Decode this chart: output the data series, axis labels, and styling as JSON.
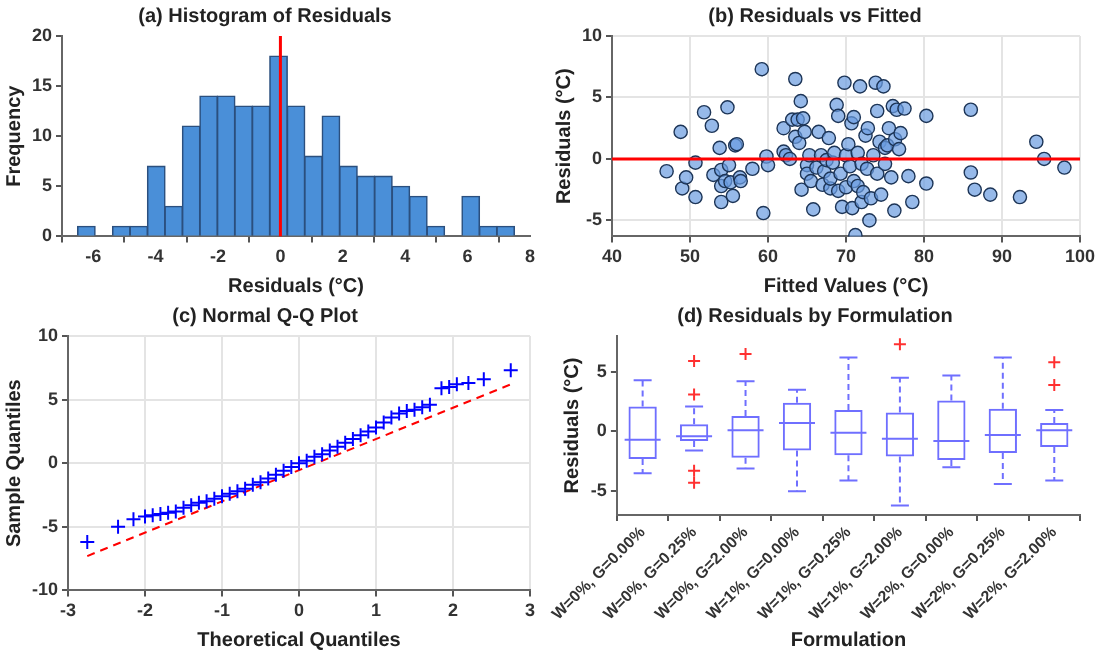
{
  "chart_data": [
    {
      "type": "histogram",
      "title": "(a) Histogram of Residuals",
      "xlabel": "Residuals (°C)",
      "ylabel": "Frequency",
      "color": "#4a8fd8",
      "bins": [
        -6.5,
        -5.94,
        -5.38,
        -4.82,
        -4.26,
        -3.7,
        -3.14,
        -2.58,
        -2.02,
        -1.46,
        -0.9,
        -0.34,
        0.22,
        0.78,
        1.34,
        1.9,
        2.46,
        3.02,
        3.58,
        4.14,
        4.7,
        5.26,
        5.82,
        6.38,
        6.94,
        7.5
      ],
      "values": [
        1,
        0,
        1,
        1,
        7,
        3,
        11,
        14,
        14,
        13,
        13,
        18,
        13,
        8,
        12,
        7,
        6,
        6,
        5,
        4,
        1,
        0,
        4,
        1,
        1
      ],
      "xlim": [
        -7,
        8
      ],
      "xticks": [
        -6,
        -4,
        -2,
        0,
        2,
        4,
        6,
        8
      ],
      "ylim": [
        0,
        20
      ],
      "yticks": [
        0,
        5,
        10,
        15,
        20
      ],
      "grid": false,
      "legend": false,
      "ref_lines": [
        {
          "axis": "x",
          "value": 0,
          "color": "#ff0000"
        }
      ]
    },
    {
      "type": "scatter",
      "title": "(b) Residuals vs Fitted",
      "xlabel": "Fitted Values (°C)",
      "ylabel": "Residuals (°C)",
      "color": "#6a9be0",
      "marker": "circle",
      "x": [
        47,
        48.8,
        49,
        49.5,
        50.7,
        50.7,
        51.8,
        52.8,
        53,
        53.8,
        54,
        54,
        54,
        54.5,
        54.8,
        55,
        55.2,
        55.5,
        55.8,
        56,
        56.4,
        56.5,
        58,
        59.2,
        59.4,
        59.8,
        60,
        62,
        62,
        62.3,
        62.8,
        63.1,
        63.5,
        63.5,
        63.8,
        64,
        64.2,
        64.3,
        64.5,
        64.7,
        65,
        65,
        65.3,
        65.5,
        65.8,
        66.2,
        66.5,
        66.8,
        67,
        67.2,
        67.5,
        67.8,
        68,
        68,
        68.3,
        68.5,
        68.8,
        69,
        69,
        69.3,
        69.5,
        69.8,
        70,
        70,
        70.3,
        70.5,
        70.7,
        70.8,
        71,
        71,
        71.2,
        71.5,
        71.5,
        71.8,
        72,
        72,
        72.2,
        72.5,
        72.7,
        72.8,
        73,
        73.2,
        73.5,
        73.8,
        74,
        74,
        74.3,
        74.5,
        74.8,
        75,
        75,
        75.3,
        75.5,
        75.8,
        76,
        76.2,
        76.3,
        76.5,
        76.8,
        77,
        77.5,
        78,
        78.5,
        80.3,
        80.3,
        86,
        86,
        86.5,
        88.5,
        92.3,
        94.4,
        95.4,
        98
      ],
      "values": [
        -1,
        2.2,
        -2.4,
        -1.5,
        -0.3,
        -3.1,
        3.8,
        2.7,
        -1.3,
        0.9,
        -0.9,
        -2.2,
        -3.5,
        -1.8,
        4.2,
        -0.5,
        -1.9,
        -3,
        1.1,
        1.2,
        -1.5,
        -1.8,
        -0.8,
        7.3,
        -4.4,
        0.2,
        -0.5,
        2.5,
        0.6,
        0.3,
        0,
        3.2,
        6.5,
        1.8,
        3.2,
        1.3,
        4.7,
        -2.5,
        3.3,
        2.2,
        -0.5,
        -1.2,
        0.3,
        -1.8,
        -4.1,
        -0.7,
        2.2,
        0.3,
        -2.1,
        -1,
        -0.1,
        1.7,
        -2.4,
        -1.6,
        -0.3,
        0.5,
        4.4,
        3.5,
        -2.6,
        -1.2,
        -3.9,
        6.2,
        0.3,
        -2.3,
        1.2,
        -0.6,
        2.9,
        -4,
        3.4,
        -1.8,
        -6.2,
        0.5,
        -2.2,
        5.9,
        -0.4,
        -3.5,
        -2.7,
        1.9,
        -0.8,
        2.5,
        -5,
        -3.2,
        0.3,
        6.2,
        3.9,
        -1.2,
        1.4,
        -2.9,
        5.9,
        0.9,
        -0.4,
        1.1,
        2.5,
        -1.5,
        4.3,
        -4.2,
        1.6,
        4,
        0.8,
        2.1,
        4.1,
        -1.4,
        -3.5,
        3.5,
        -2,
        4,
        -1.1,
        -2.5,
        -2.9,
        -3.1,
        1.4,
        0,
        -0.7
      ],
      "xlim": [
        40,
        100
      ],
      "xticks": [
        40,
        50,
        60,
        70,
        80,
        90,
        100
      ],
      "ylim": [
        -6.3,
        10
      ],
      "yticks": [
        -5,
        0,
        5,
        10
      ],
      "grid": true,
      "legend": false,
      "ref_lines": [
        {
          "axis": "y",
          "value": 0,
          "color": "#ff0000"
        }
      ]
    },
    {
      "type": "scatter",
      "title": "(c) Normal Q-Q Plot",
      "xlabel": "Theoretical Quantiles",
      "ylabel": "Sample Quantiles",
      "grid": true,
      "legend": false,
      "series": [
        {
          "type": "scatter",
          "color": "#0000ff",
          "marker": "cross",
          "x": [
            -2.75,
            -2.35,
            -2.15,
            -2,
            -1.9,
            -1.8,
            -1.7,
            -1.6,
            -1.5,
            -1.4,
            -1.3,
            -1.2,
            -1.1,
            -1,
            -0.9,
            -0.8,
            -0.7,
            -0.6,
            -0.5,
            -0.4,
            -0.3,
            -0.2,
            -0.1,
            0,
            0.1,
            0.2,
            0.3,
            0.4,
            0.5,
            0.6,
            0.7,
            0.8,
            0.9,
            1,
            1.1,
            1.2,
            1.3,
            1.4,
            1.5,
            1.6,
            1.7,
            1.85,
            1.95,
            2.05,
            2.2,
            2.4,
            2.75
          ],
          "values": [
            -6.2,
            -5,
            -4.4,
            -4.2,
            -4.1,
            -4,
            -3.9,
            -3.8,
            -3.5,
            -3.3,
            -3.1,
            -3,
            -2.8,
            -2.6,
            -2.4,
            -2.2,
            -2,
            -1.7,
            -1.5,
            -1.2,
            -0.9,
            -0.6,
            -0.3,
            0,
            0.2,
            0.5,
            0.7,
            1,
            1.3,
            1.6,
            1.9,
            2.2,
            2.5,
            2.8,
            3.2,
            3.6,
            3.9,
            4.1,
            4.2,
            4.4,
            4.6,
            5.9,
            6,
            6.2,
            6.3,
            6.6,
            7.3
          ]
        },
        {
          "type": "line",
          "color": "#ff0000",
          "line_style": "dashed",
          "x": [
            -2.75,
            2.75
          ],
          "values": [
            -7.3,
            6.2
          ]
        }
      ],
      "xlim": [
        -3,
        3
      ],
      "xticks": [
        -3,
        -2,
        -1,
        0,
        1,
        2,
        3
      ],
      "ylim": [
        -10,
        10
      ],
      "yticks": [
        -10,
        -5,
        0,
        5,
        10
      ]
    },
    {
      "type": "box",
      "title": "(d) Residuals by Formulation",
      "xlabel": "Formulation",
      "ylabel": "Residuals (°C)",
      "color": "#6f6fff",
      "grid": false,
      "legend": false,
      "categories": [
        "W=0%, G=0.00%",
        "W=0%, G=0.25%",
        "W=0%, G=2.00%",
        "W=1%, G=0.00%",
        "W=1%, G=0.25%",
        "W=1%, G=2.00%",
        "W=2%, G=0.00%",
        "W=2%, G=0.25%",
        "W=2%, G=2.00%"
      ],
      "boxes": [
        {
          "low": -3.5,
          "q1": -2.3,
          "median": -0.7,
          "q3": 2.1,
          "high": 4.3
        },
        {
          "low": -1.6,
          "q1": -0.8,
          "median": -0.4,
          "q3": 0.6,
          "high": 2.1,
          "outliers": [
            5.9,
            3.1,
            -3.3,
            -4.3
          ]
        },
        {
          "low": -3.1,
          "q1": -2.2,
          "median": 0.1,
          "q3": 1.3,
          "high": 4.2,
          "outliers": [
            6.5
          ]
        },
        {
          "low": -5,
          "q1": -1.6,
          "median": 0.7,
          "q3": 2.4,
          "high": 3.5
        },
        {
          "low": -4.1,
          "q1": -2,
          "median": -0.1,
          "q3": 1.8,
          "high": 6.2
        },
        {
          "low": -6.2,
          "q1": -2.1,
          "median": -0.6,
          "q3": 1.6,
          "high": 4.5,
          "outliers": [
            7.3
          ]
        },
        {
          "low": -3,
          "q1": -2.4,
          "median": -0.8,
          "q3": 2.6,
          "high": 4.7
        },
        {
          "low": -4.4,
          "q1": -1.8,
          "median": -0.3,
          "q3": 1.9,
          "high": 6.2
        },
        {
          "low": -4.1,
          "q1": -1.3,
          "median": 0.1,
          "q3": 0.7,
          "high": 1.8,
          "outliers": [
            5.8,
            3.9
          ]
        }
      ],
      "ylim": [
        -7,
        8
      ],
      "yticks": [
        -5,
        0,
        5
      ]
    }
  ]
}
